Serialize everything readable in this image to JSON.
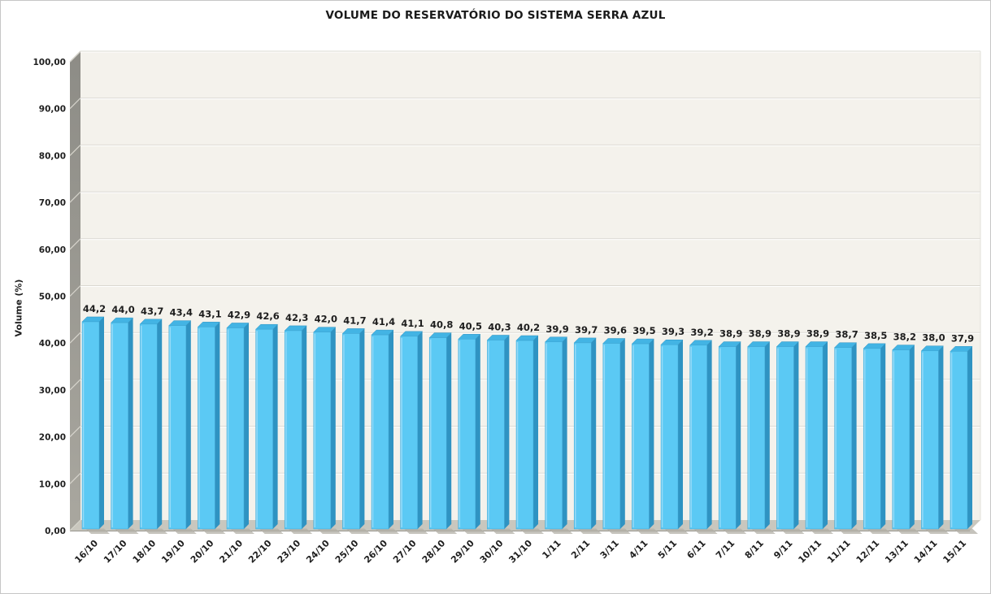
{
  "chart_data": {
    "type": "bar",
    "title": "VOLUME DO RESERVATÓRIO DO SISTEMA SERRA AZUL",
    "xlabel": "",
    "ylabel": "Volume (%)",
    "ylim": [
      0,
      100
    ],
    "grid": true,
    "legend": false,
    "style_3d": true,
    "categories": [
      "16/10",
      "17/10",
      "18/10",
      "19/10",
      "20/10",
      "21/10",
      "22/10",
      "23/10",
      "24/10",
      "25/10",
      "26/10",
      "27/10",
      "28/10",
      "29/10",
      "30/10",
      "31/10",
      "1/11",
      "2/11",
      "3/11",
      "4/11",
      "5/11",
      "6/11",
      "7/11",
      "8/11",
      "9/11",
      "10/11",
      "11/11",
      "12/11",
      "13/11",
      "14/11",
      "15/11"
    ],
    "values": [
      44.2,
      44.0,
      43.7,
      43.4,
      43.1,
      42.9,
      42.6,
      42.3,
      42.0,
      41.7,
      41.4,
      41.1,
      40.8,
      40.5,
      40.3,
      40.2,
      39.9,
      39.7,
      39.6,
      39.5,
      39.3,
      39.2,
      38.9,
      38.9,
      38.9,
      38.9,
      38.7,
      38.5,
      38.2,
      38.0,
      37.9
    ],
    "value_labels": [
      "44,2",
      "44,0",
      "43,7",
      "43,4",
      "43,1",
      "42,9",
      "42,6",
      "42,3",
      "42,0",
      "41,7",
      "41,4",
      "41,1",
      "40,8",
      "40,5",
      "40,3",
      "40,2",
      "39,9",
      "39,7",
      "39,6",
      "39,5",
      "39,3",
      "39,2",
      "38,9",
      "38,9",
      "38,9",
      "38,9",
      "38,7",
      "38,5",
      "38,2",
      "38,0",
      "37,9"
    ],
    "y_ticks": [
      0,
      10,
      20,
      30,
      40,
      50,
      60,
      70,
      80,
      90,
      100
    ],
    "y_tick_labels": [
      "0,00",
      "10,00",
      "20,00",
      "30,00",
      "40,00",
      "50,00",
      "60,00",
      "70,00",
      "80,00",
      "90,00",
      "100,00"
    ],
    "colors": {
      "bar_front": "#5BC9F4",
      "bar_side": "#2F93C2",
      "bar_top": "#43B4E4",
      "bar_edge": "#3EA6D4",
      "bar_highlight": "#A5E0F9",
      "bar_shadow": "#B1AFA6",
      "plot_bg": "#F4F2EC",
      "gridline": "#DAD8D1",
      "gridline_highlight": "#FFFFFF",
      "wall_top": "#8D8C86",
      "wall_bottom": "#A9A79F",
      "wall_tick": "#D6D4CC",
      "floor": "#C9C7BE",
      "floor_edge": "#97958D",
      "text": "#1E1E1E"
    }
  }
}
